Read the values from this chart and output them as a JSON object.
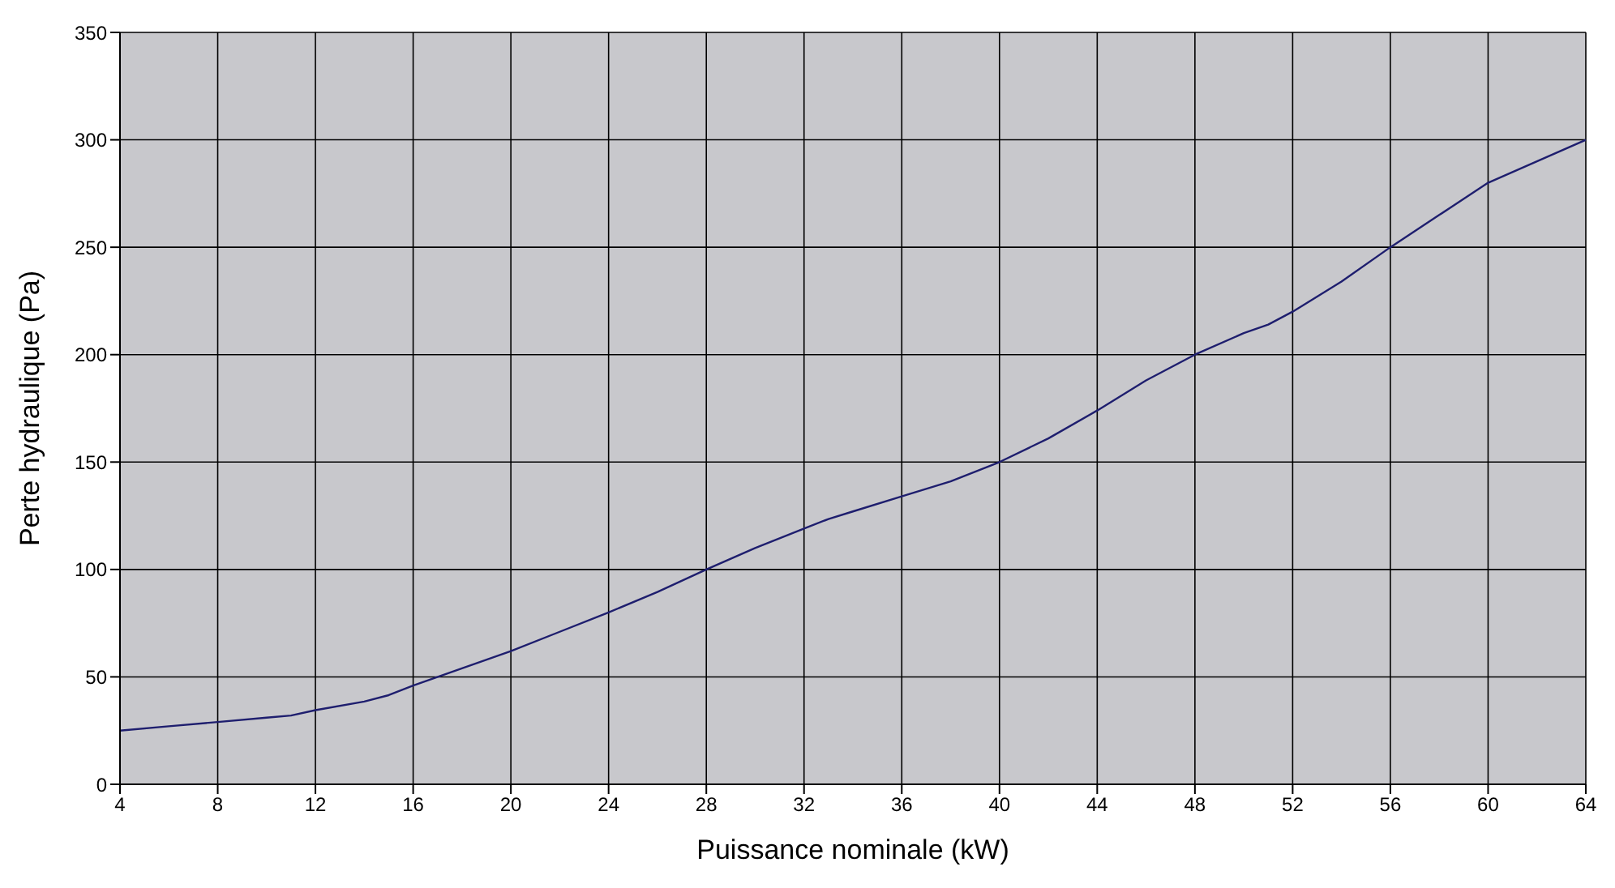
{
  "chart_data": {
    "type": "line",
    "xlabel": "Puissance nominale (kW)",
    "ylabel": "Perte hydraulique (Pa)",
    "x": [
      4,
      6,
      8,
      10,
      11,
      12,
      14,
      15,
      16,
      18,
      20,
      22,
      24,
      26,
      28,
      30,
      32,
      33,
      34,
      36,
      38,
      40,
      42,
      44,
      46,
      48,
      50,
      51,
      52,
      54,
      56,
      58,
      60,
      62,
      64
    ],
    "series": [
      {
        "color": "#1e1e6e",
        "values": [
          25,
          27,
          29,
          31,
          32,
          34.5,
          38.5,
          41.5,
          46,
          54,
          62,
          71,
          80,
          89.5,
          100,
          110,
          119,
          123.5,
          127,
          134,
          141,
          150,
          161,
          174,
          188,
          200,
          210,
          214,
          220,
          234,
          250,
          265,
          280,
          290,
          300
        ]
      }
    ],
    "xlim": [
      4,
      64
    ],
    "xticks": [
      4,
      8,
      12,
      16,
      20,
      24,
      28,
      32,
      36,
      40,
      44,
      48,
      52,
      56,
      60,
      64
    ],
    "ylim": [
      0,
      350
    ],
    "yticks": [
      0,
      50,
      100,
      150,
      200,
      250,
      300,
      350
    ],
    "grid": true,
    "marker": "none",
    "line_style": "solid",
    "legend": false
  }
}
